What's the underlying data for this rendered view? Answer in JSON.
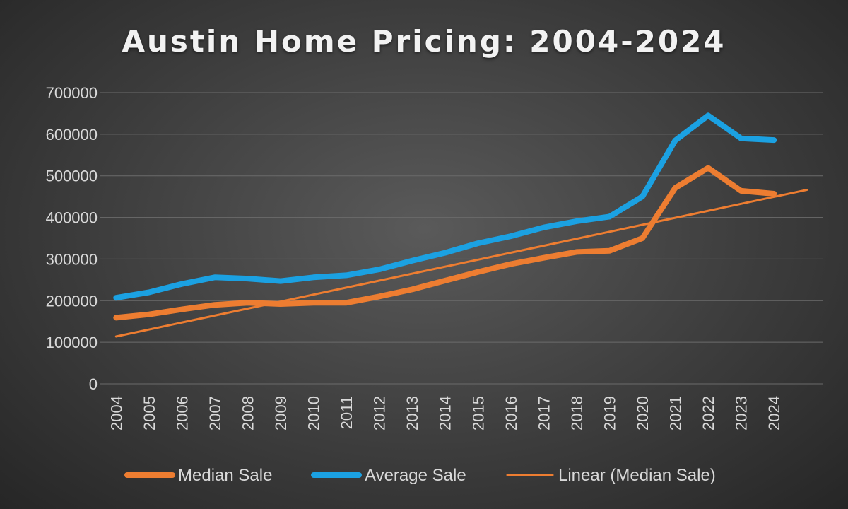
{
  "chart_data": {
    "type": "line",
    "title": "Austin Home Pricing: 2004-2024",
    "xlabel": "",
    "ylabel": "",
    "ylim": [
      0,
      700000
    ],
    "y_ticks": [
      0,
      100000,
      200000,
      300000,
      400000,
      500000,
      600000,
      700000
    ],
    "grid": true,
    "legend_position": "bottom",
    "categories": [
      "2004",
      "2005",
      "2006",
      "2007",
      "2008",
      "2009",
      "2010",
      "2011",
      "2012",
      "2013",
      "2014",
      "2015",
      "2016",
      "2017",
      "2018",
      "2019",
      "2020",
      "2021",
      "2022",
      "2023",
      "2024"
    ],
    "series": [
      {
        "name": "Median Sale",
        "color": "#ed7d31",
        "values": [
          159000,
          167000,
          179000,
          190000,
          195000,
          192000,
          195000,
          195000,
          210000,
          227000,
          248000,
          269000,
          288000,
          303000,
          317000,
          320000,
          350000,
          471000,
          519000,
          464000,
          457000
        ]
      },
      {
        "name": "Average Sale",
        "color": "#1ba1e2",
        "values": [
          207000,
          220000,
          240000,
          256000,
          253000,
          247000,
          256000,
          261000,
          275000,
          296000,
          315000,
          338000,
          355000,
          376000,
          391000,
          402000,
          450000,
          585000,
          645000,
          590000,
          586000
        ]
      }
    ],
    "trendline": {
      "name": "Linear (Median Sale)",
      "color": "#ed7d31",
      "type": "linear",
      "of_series": "Median Sale",
      "forward_periods": 1
    }
  }
}
